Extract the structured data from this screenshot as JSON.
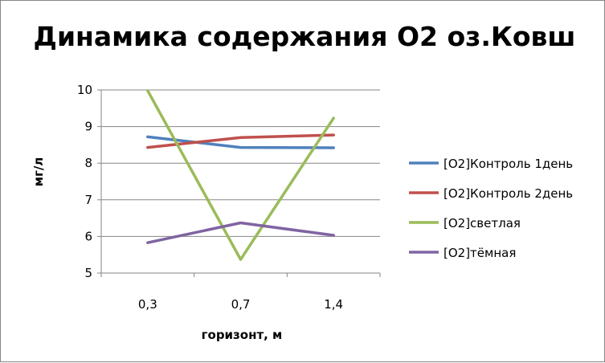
{
  "chart_data": {
    "type": "line",
    "title": "Динамика содержания О2 оз.Ковш",
    "xlabel": "горизонт, м",
    "ylabel": "мг/л",
    "categories": [
      "0,3",
      "0,7",
      "1,4"
    ],
    "ylim": [
      5,
      10
    ],
    "yticks": [
      "5",
      "6",
      "7",
      "8",
      "9",
      "10"
    ],
    "grid": true,
    "legend_position": "right",
    "series": [
      {
        "name": "[O2]Контроль 1день",
        "values": [
          8.72,
          8.43,
          8.42
        ],
        "color": "#4F81BD"
      },
      {
        "name": "[O2]Контроль 2день",
        "values": [
          8.43,
          8.7,
          8.77
        ],
        "color": "#C0504D"
      },
      {
        "name": "[O2]светлая",
        "values": [
          9.98,
          5.37,
          9.23
        ],
        "color": "#9BBB59"
      },
      {
        "name": "[O2]тёмная",
        "values": [
          5.83,
          6.37,
          6.03
        ],
        "color": "#8064A2"
      }
    ]
  }
}
